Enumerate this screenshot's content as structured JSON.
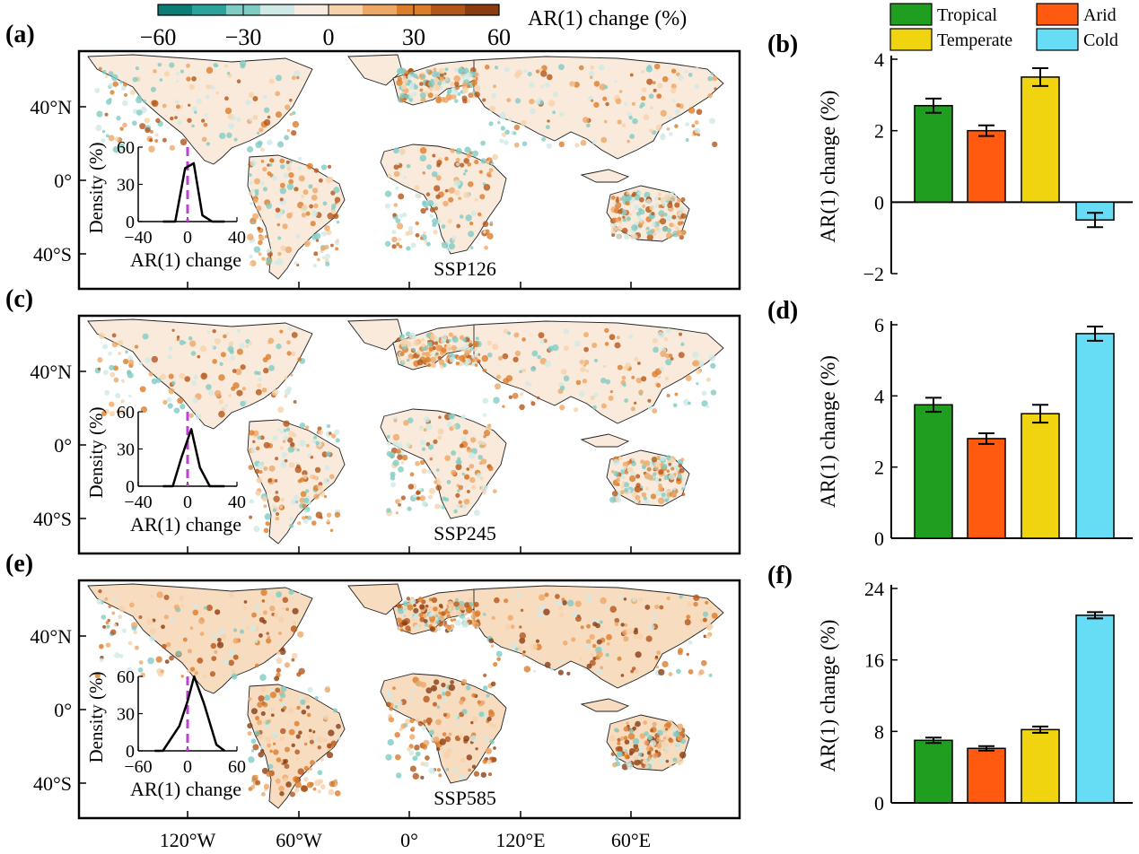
{
  "colorbar": {
    "label": "AR(1) change (%)",
    "ticks": [
      "−60",
      "−30",
      "0",
      "30",
      "60"
    ],
    "colors": [
      "#0b7d74",
      "#2aa39a",
      "#7fccc4",
      "#cfeae6",
      "#f7ecdf",
      "#f6d2aa",
      "#eda866",
      "#dc7d2a",
      "#b4561a",
      "#8a3c10"
    ]
  },
  "legend": {
    "items": [
      {
        "label": "Tropical",
        "color": "#1f9e1f"
      },
      {
        "label": "Arid",
        "color": "#ff5a10"
      },
      {
        "label": "Temperate",
        "color": "#f0d410"
      },
      {
        "label": "Cold",
        "color": "#66ddf5"
      }
    ]
  },
  "map_labels": {
    "lat": [
      "40°N",
      "0°",
      "40°S"
    ],
    "lon": [
      "120°W",
      "60°W",
      "0°",
      "120°E",
      "60°E"
    ]
  },
  "inset_text": {
    "ylabel": "Density (%)",
    "xlabel": "AR(1) change"
  },
  "panels": [
    {
      "map_letter": "(a)",
      "bar_letter": "(b)",
      "scenario": "SSP126"
    },
    {
      "map_letter": "(c)",
      "bar_letter": "(d)",
      "scenario": "SSP245"
    },
    {
      "map_letter": "(e)",
      "bar_letter": "(f)",
      "scenario": "SSP585"
    }
  ],
  "chart_data": [
    {
      "type": "bar",
      "panel": "(b)",
      "categories": [
        "Tropical",
        "Arid",
        "Temperate",
        "Cold"
      ],
      "values": [
        2.7,
        2.0,
        3.5,
        -0.5
      ],
      "errors": [
        0.2,
        0.15,
        0.25,
        0.2
      ],
      "ylabel": "AR(1) change (%)",
      "ylim": [
        -2,
        4
      ],
      "yticks": [
        "−2",
        "0",
        "2",
        "4"
      ],
      "ytick_values": [
        -2,
        0,
        2,
        4
      ]
    },
    {
      "type": "bar",
      "panel": "(d)",
      "categories": [
        "Tropical",
        "Arid",
        "Temperate",
        "Cold"
      ],
      "values": [
        3.75,
        2.8,
        3.5,
        5.75
      ],
      "errors": [
        0.2,
        0.15,
        0.25,
        0.2
      ],
      "ylabel": "AR(1) change (%)",
      "ylim": [
        0,
        6
      ],
      "yticks": [
        "0",
        "2",
        "4",
        "6"
      ],
      "ytick_values": [
        0,
        2,
        4,
        6
      ]
    },
    {
      "type": "bar",
      "panel": "(f)",
      "categories": [
        "Tropical",
        "Arid",
        "Temperate",
        "Cold"
      ],
      "values": [
        7.0,
        6.1,
        8.2,
        21.0
      ],
      "errors": [
        0.3,
        0.25,
        0.35,
        0.35
      ],
      "ylabel": "AR(1) change (%)",
      "ylim": [
        0,
        24
      ],
      "yticks": [
        "0",
        "8",
        "16",
        "24"
      ],
      "ytick_values": [
        0,
        8,
        16,
        24
      ]
    },
    {
      "type": "line",
      "panel": "(a) inset",
      "x": [
        -20,
        -10,
        -2,
        5,
        12,
        20,
        30
      ],
      "y": [
        0,
        0,
        43,
        47,
        5,
        0,
        0
      ],
      "xlim": [
        -40,
        40
      ],
      "ylim": [
        0,
        60
      ],
      "xticks": [
        "−40",
        "0",
        "40"
      ],
      "xtick_values": [
        -40,
        0,
        40
      ],
      "yticks": [
        "0",
        "30",
        "60"
      ],
      "ytick_values": [
        0,
        30,
        60
      ]
    },
    {
      "type": "line",
      "panel": "(c) inset",
      "x": [
        -20,
        -12,
        -5,
        3,
        10,
        18,
        30
      ],
      "y": [
        0,
        0,
        23,
        46,
        15,
        0,
        0
      ],
      "xlim": [
        -40,
        40
      ],
      "ylim": [
        0,
        60
      ],
      "xticks": [
        "−40",
        "0",
        "40"
      ],
      "xtick_values": [
        -40,
        0,
        40
      ],
      "yticks": [
        "0",
        "30",
        "60"
      ],
      "ytick_values": [
        0,
        30,
        60
      ]
    },
    {
      "type": "line",
      "panel": "(e) inset",
      "x": [
        -40,
        -30,
        -10,
        0,
        8,
        20,
        35,
        45
      ],
      "y": [
        0,
        0,
        20,
        40,
        60,
        38,
        5,
        0
      ],
      "xlim": [
        -60,
        60
      ],
      "ylim": [
        0,
        60
      ],
      "xticks": [
        "−60",
        "0",
        "60"
      ],
      "xtick_values": [
        -60,
        0,
        60
      ],
      "yticks": [
        "0",
        "30",
        "60"
      ],
      "ytick_values": [
        0,
        30,
        60
      ]
    }
  ]
}
